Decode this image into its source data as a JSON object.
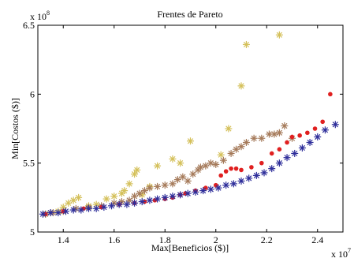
{
  "chart_data": {
    "type": "scatter",
    "title": "Frentes de Pareto",
    "xlabel": "Max[Beneficios ($)]",
    "ylabel": "Min[Costos ($)]",
    "x_multiplier": {
      "base": "x 10",
      "exponent": "7"
    },
    "y_multiplier": {
      "base": "x 10",
      "exponent": "8"
    },
    "xlim": [
      1.3,
      2.5
    ],
    "ylim": [
      5.0,
      6.5
    ],
    "x_ticks": [
      1.4,
      1.6,
      1.8,
      2.0,
      2.2,
      2.4
    ],
    "x_tick_labels": [
      "1.4",
      "1.6",
      "1.8",
      "2",
      "2.2",
      "2.4"
    ],
    "y_ticks": [
      5.0,
      5.5,
      6.0,
      6.5
    ],
    "y_tick_labels": [
      "5",
      "5.5",
      "6",
      "6.5"
    ],
    "grid": false,
    "series": [
      {
        "marker": "star",
        "color": "#d4c05a",
        "points": [
          [
            1.33,
            5.13
          ],
          [
            1.35,
            5.14
          ],
          [
            1.38,
            5.15
          ],
          [
            1.4,
            5.18
          ],
          [
            1.42,
            5.21
          ],
          [
            1.44,
            5.23
          ],
          [
            1.46,
            5.25
          ],
          [
            1.5,
            5.19
          ],
          [
            1.53,
            5.2
          ],
          [
            1.57,
            5.24
          ],
          [
            1.6,
            5.26
          ],
          [
            1.63,
            5.28
          ],
          [
            1.64,
            5.3
          ],
          [
            1.66,
            5.35
          ],
          [
            1.68,
            5.42
          ],
          [
            1.69,
            5.45
          ],
          [
            1.71,
            5.27
          ],
          [
            1.74,
            5.33
          ],
          [
            1.77,
            5.48
          ],
          [
            1.83,
            5.53
          ],
          [
            1.86,
            5.5
          ],
          [
            1.9,
            5.66
          ],
          [
            2.02,
            5.56
          ],
          [
            2.05,
            5.75
          ],
          [
            2.1,
            6.06
          ],
          [
            2.12,
            6.36
          ],
          [
            2.25,
            6.43
          ]
        ]
      },
      {
        "marker": "star",
        "color": "#a57a5a",
        "points": [
          [
            1.33,
            5.13
          ],
          [
            1.36,
            5.14
          ],
          [
            1.4,
            5.15
          ],
          [
            1.45,
            5.17
          ],
          [
            1.5,
            5.18
          ],
          [
            1.55,
            5.19
          ],
          [
            1.6,
            5.21
          ],
          [
            1.63,
            5.22
          ],
          [
            1.66,
            5.23
          ],
          [
            1.68,
            5.26
          ],
          [
            1.7,
            5.28
          ],
          [
            1.72,
            5.3
          ],
          [
            1.74,
            5.32
          ],
          [
            1.77,
            5.33
          ],
          [
            1.8,
            5.34
          ],
          [
            1.83,
            5.35
          ],
          [
            1.85,
            5.38
          ],
          [
            1.87,
            5.4
          ],
          [
            1.89,
            5.37
          ],
          [
            1.91,
            5.42
          ],
          [
            1.93,
            5.45
          ],
          [
            1.94,
            5.47
          ],
          [
            1.96,
            5.48
          ],
          [
            1.98,
            5.5
          ],
          [
            2.0,
            5.49
          ],
          [
            2.03,
            5.52
          ],
          [
            2.06,
            5.57
          ],
          [
            2.08,
            5.6
          ],
          [
            2.1,
            5.62
          ],
          [
            2.12,
            5.65
          ],
          [
            2.15,
            5.68
          ],
          [
            2.18,
            5.68
          ],
          [
            2.21,
            5.71
          ],
          [
            2.23,
            5.71
          ],
          [
            2.25,
            5.72
          ],
          [
            2.27,
            5.77
          ],
          [
            2.3,
            5.68
          ]
        ]
      },
      {
        "marker": "dot",
        "color": "#e02020",
        "points": [
          [
            1.33,
            5.13
          ],
          [
            1.4,
            5.15
          ],
          [
            1.48,
            5.17
          ],
          [
            1.55,
            5.18
          ],
          [
            1.62,
            5.2
          ],
          [
            1.68,
            5.21
          ],
          [
            1.72,
            5.22
          ],
          [
            1.76,
            5.23
          ],
          [
            1.8,
            5.24
          ],
          [
            1.83,
            5.25
          ],
          [
            1.86,
            5.27
          ],
          [
            1.88,
            5.28
          ],
          [
            1.92,
            5.3
          ],
          [
            1.96,
            5.32
          ],
          [
            2.0,
            5.34
          ],
          [
            2.02,
            5.41
          ],
          [
            2.04,
            5.44
          ],
          [
            2.06,
            5.46
          ],
          [
            2.08,
            5.46
          ],
          [
            2.1,
            5.45
          ],
          [
            2.14,
            5.47
          ],
          [
            2.18,
            5.5
          ],
          [
            2.22,
            5.57
          ],
          [
            2.25,
            5.6
          ],
          [
            2.28,
            5.65
          ],
          [
            2.3,
            5.69
          ],
          [
            2.33,
            5.7
          ],
          [
            2.36,
            5.72
          ],
          [
            2.39,
            5.75
          ],
          [
            2.42,
            5.8
          ],
          [
            2.45,
            6.0
          ]
        ]
      },
      {
        "marker": "star",
        "color": "#2e2e9a",
        "points": [
          [
            1.32,
            5.13
          ],
          [
            1.35,
            5.14
          ],
          [
            1.38,
            5.14
          ],
          [
            1.41,
            5.15
          ],
          [
            1.44,
            5.16
          ],
          [
            1.47,
            5.16
          ],
          [
            1.5,
            5.17
          ],
          [
            1.53,
            5.17
          ],
          [
            1.56,
            5.18
          ],
          [
            1.59,
            5.19
          ],
          [
            1.62,
            5.2
          ],
          [
            1.65,
            5.2
          ],
          [
            1.68,
            5.21
          ],
          [
            1.71,
            5.22
          ],
          [
            1.74,
            5.23
          ],
          [
            1.77,
            5.24
          ],
          [
            1.8,
            5.25
          ],
          [
            1.83,
            5.26
          ],
          [
            1.86,
            5.27
          ],
          [
            1.89,
            5.28
          ],
          [
            1.92,
            5.29
          ],
          [
            1.95,
            5.3
          ],
          [
            1.98,
            5.31
          ],
          [
            2.01,
            5.32
          ],
          [
            2.04,
            5.34
          ],
          [
            2.07,
            5.35
          ],
          [
            2.1,
            5.37
          ],
          [
            2.13,
            5.39
          ],
          [
            2.16,
            5.41
          ],
          [
            2.19,
            5.43
          ],
          [
            2.22,
            5.46
          ],
          [
            2.25,
            5.5
          ],
          [
            2.28,
            5.54
          ],
          [
            2.31,
            5.57
          ],
          [
            2.34,
            5.61
          ],
          [
            2.37,
            5.65
          ],
          [
            2.4,
            5.69
          ],
          [
            2.43,
            5.74
          ],
          [
            2.47,
            5.78
          ]
        ]
      }
    ]
  }
}
